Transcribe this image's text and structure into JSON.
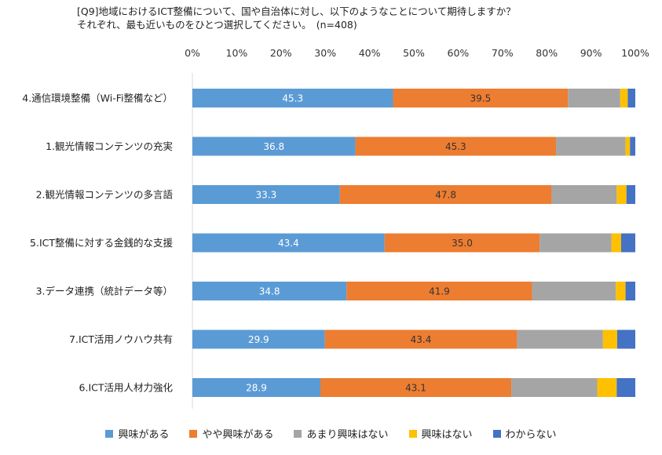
{
  "title_line1": "[Q9]地域におけるICT整備について、国や自治体に対し、以下のようなことについて期待しますか？",
  "title_line2": "それぞれ、最も近いものをひとつ選択してください。　(n=408)",
  "chart_data": {
    "type": "bar",
    "orientation": "horizontal",
    "stacked": true,
    "xlim": [
      0,
      100
    ],
    "x_ticks": [
      "0%",
      "10%",
      "20%",
      "30%",
      "40%",
      "50%",
      "60%",
      "70%",
      "80%",
      "90%",
      "100%"
    ],
    "categories": [
      "4.通信環境整備（Wi-Fi整備など）",
      "1.観光情報コンテンツの充実",
      "2.観光情報コンテンツの多言語",
      "5.ICT整備に対する金銭的な支援",
      "3.データ連携（統計データ等）",
      "7.ICT活用ノウハウ共有",
      "6.ICT活用人材力強化"
    ],
    "series": [
      {
        "name": "興味がある",
        "color": "#5B9BD5",
        "values": [
          45.3,
          36.8,
          33.3,
          43.4,
          34.8,
          29.9,
          28.9
        ],
        "labels": [
          "45.3",
          "36.8",
          "33.3",
          "43.4",
          "34.8",
          "29.9",
          "28.9"
        ]
      },
      {
        "name": "やや興味がある",
        "color": "#ED7D31",
        "values": [
          39.5,
          45.3,
          47.8,
          35.0,
          41.9,
          43.4,
          43.1
        ],
        "labels": [
          "39.5",
          "45.3",
          "47.8",
          "35.0",
          "41.9",
          "43.4",
          "43.1"
        ]
      },
      {
        "name": "あまり興味はない",
        "color": "#A5A5A5",
        "values": [
          11.8,
          15.7,
          14.7,
          16.2,
          18.9,
          19.4,
          19.4
        ]
      },
      {
        "name": "興味はない",
        "color": "#FFC000",
        "values": [
          1.7,
          1.0,
          2.2,
          2.2,
          2.2,
          3.2,
          4.4
        ]
      },
      {
        "name": "わからない",
        "color": "#4472C4",
        "values": [
          1.7,
          1.2,
          2.0,
          3.2,
          2.2,
          4.1,
          4.2
        ]
      }
    ],
    "legend_position": "bottom",
    "grid": false
  }
}
